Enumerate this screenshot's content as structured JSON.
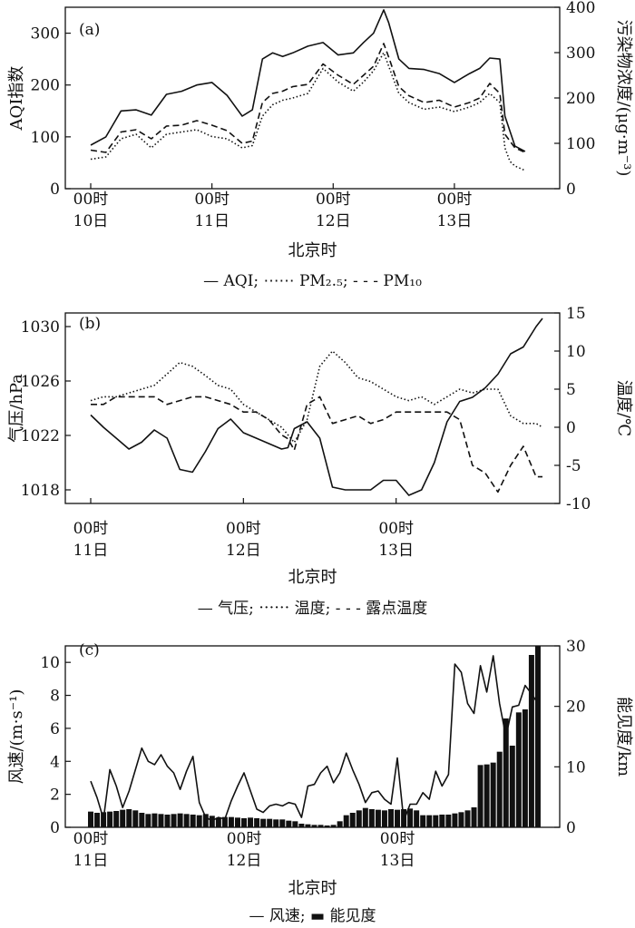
{
  "chart_data": [
    {
      "type": "line",
      "panel_label": "(a)",
      "xlabel": "北京时",
      "ylabel": "AQI指数",
      "ylabel_right": "污染物浓度/(μg·m⁻³)",
      "xlim": [
        0,
        88
      ],
      "ylim": [
        0,
        350
      ],
      "ylim_right": [
        0,
        400
      ],
      "yticks": [
        0,
        100,
        200,
        300
      ],
      "yticks_right": [
        0,
        100,
        200,
        300,
        400
      ],
      "x_ticks": [
        {
          "x": 0,
          "line1": "00时",
          "line2": "10日"
        },
        {
          "x": 24,
          "line1": "00时",
          "line2": "11日"
        },
        {
          "x": 48,
          "line1": "00时",
          "line2": "12日"
        },
        {
          "x": 72,
          "line1": "00时",
          "line2": "13日"
        }
      ],
      "legend": "— AQI;  ⋯⋯ PM₂.₅;  - - - PM₁₀",
      "series": [
        {
          "name": "AQI",
          "axis": "left",
          "style": "solid",
          "x": [
            0,
            3,
            6,
            9,
            12,
            15,
            18,
            21,
            24,
            27,
            30,
            32,
            34,
            36,
            38,
            40,
            43,
            46,
            49,
            52,
            54,
            56,
            58,
            59,
            61,
            63,
            66,
            69,
            72,
            75,
            77,
            79,
            81,
            82,
            84,
            86
          ],
          "y": [
            84,
            100,
            150,
            152,
            142,
            182,
            188,
            200,
            205,
            180,
            140,
            152,
            250,
            262,
            255,
            262,
            275,
            282,
            258,
            262,
            282,
            300,
            345,
            320,
            250,
            232,
            230,
            222,
            205,
            222,
            232,
            252,
            250,
            140,
            82,
            72
          ]
        },
        {
          "name": "PM₂.₅",
          "axis": "right",
          "style": "dotted",
          "x": [
            0,
            3,
            6,
            9,
            12,
            15,
            18,
            21,
            24,
            27,
            30,
            32,
            34,
            36,
            38,
            40,
            43,
            46,
            49,
            52,
            54,
            56,
            58,
            59,
            61,
            63,
            66,
            69,
            72,
            75,
            77,
            79,
            81,
            82,
            83,
            84,
            86
          ],
          "y": [
            65,
            70,
            110,
            120,
            90,
            120,
            125,
            130,
            115,
            110,
            90,
            95,
            160,
            185,
            195,
            200,
            210,
            265,
            235,
            215,
            235,
            260,
            300,
            270,
            210,
            190,
            175,
            180,
            170,
            180,
            190,
            210,
            190,
            90,
            60,
            50,
            40
          ]
        },
        {
          "name": "PM₁₀",
          "axis": "right",
          "style": "dashed",
          "x": [
            0,
            3,
            6,
            9,
            12,
            15,
            18,
            21,
            24,
            27,
            30,
            32,
            34,
            36,
            38,
            40,
            43,
            46,
            49,
            52,
            54,
            56,
            58,
            59,
            61,
            63,
            66,
            69,
            72,
            75,
            77,
            79,
            81,
            82,
            84,
            86
          ],
          "y": [
            85,
            80,
            125,
            130,
            110,
            138,
            140,
            150,
            140,
            128,
            100,
            105,
            190,
            210,
            215,
            225,
            230,
            275,
            250,
            230,
            250,
            270,
            320,
            290,
            225,
            205,
            190,
            195,
            180,
            190,
            200,
            232,
            210,
            120,
            90,
            80
          ]
        }
      ]
    },
    {
      "type": "line",
      "panel_label": "(b)",
      "xlabel": "北京时",
      "ylabel": "气压/hPa",
      "ylabel_right": "温度/℃",
      "xlim": [
        0,
        72
      ],
      "ylim": [
        1017,
        1031
      ],
      "ylim_right": [
        -10,
        15
      ],
      "yticks": [
        1018,
        1022,
        1026,
        1030
      ],
      "yticks_right": [
        -10,
        -5,
        0,
        5,
        10,
        15
      ],
      "x_ticks": [
        {
          "x": 0,
          "line1": "00时",
          "line2": "11日"
        },
        {
          "x": 24,
          "line1": "00时",
          "line2": "12日"
        },
        {
          "x": 48,
          "line1": "00时",
          "line2": "13日"
        }
      ],
      "legend": "— 气压;  ⋯⋯ 温度;  - - - 露点温度",
      "series": [
        {
          "name": "气压",
          "axis": "left",
          "style": "solid",
          "x": [
            0,
            2,
            4,
            6,
            8,
            10,
            12,
            14,
            16,
            18,
            20,
            22,
            24,
            26,
            28,
            30,
            31,
            32,
            34,
            36,
            38,
            40,
            42,
            44,
            46,
            48,
            50,
            52,
            54,
            56,
            58,
            60,
            62,
            64,
            66,
            68,
            70,
            71
          ],
          "y": [
            1023.5,
            1022.6,
            1021.8,
            1021,
            1021.5,
            1022.4,
            1021.8,
            1019.5,
            1019.3,
            1020.8,
            1022.5,
            1023.2,
            1022.2,
            1021.8,
            1021.4,
            1021,
            1021.1,
            1022.5,
            1023,
            1021.8,
            1018.2,
            1018,
            1018,
            1018,
            1018.7,
            1018.7,
            1017.6,
            1018,
            1020,
            1023,
            1024.5,
            1024.8,
            1025.5,
            1026.5,
            1028,
            1028.5,
            1030,
            1030.6
          ]
        },
        {
          "name": "温度",
          "axis": "right",
          "style": "dotted",
          "x": [
            0,
            2,
            4,
            6,
            8,
            10,
            12,
            14,
            16,
            18,
            20,
            22,
            24,
            26,
            28,
            30,
            31,
            32,
            34,
            36,
            38,
            40,
            42,
            44,
            46,
            48,
            50,
            52,
            54,
            56,
            58,
            60,
            62,
            64,
            66,
            68,
            70,
            71
          ],
          "y": [
            3.5,
            4,
            4,
            4.5,
            5,
            5.5,
            7,
            8.5,
            8,
            6.8,
            5.5,
            5,
            3,
            2,
            1,
            0,
            -1,
            -2,
            1,
            8,
            10,
            8.5,
            6.5,
            6,
            5,
            4,
            3.5,
            4,
            3,
            4,
            5,
            4.5,
            5,
            5,
            1.5,
            0.5,
            0.5,
            0
          ]
        },
        {
          "name": "露点温度",
          "axis": "right",
          "style": "dashed",
          "x": [
            0,
            2,
            4,
            6,
            8,
            10,
            12,
            14,
            16,
            18,
            20,
            22,
            24,
            26,
            28,
            30,
            31,
            32,
            34,
            36,
            38,
            40,
            42,
            44,
            46,
            48,
            50,
            52,
            54,
            56,
            58,
            60,
            62,
            64,
            66,
            68,
            70,
            71
          ],
          "y": [
            3,
            3,
            4,
            4,
            4,
            4,
            3,
            3.5,
            4,
            4,
            3.5,
            3,
            2,
            2,
            1,
            -1,
            -1.5,
            -3,
            3,
            4,
            0.5,
            1,
            1.5,
            0.5,
            1,
            2,
            2,
            2,
            2,
            2,
            1,
            -5,
            -6,
            -8.5,
            -5,
            -2.5,
            -6.5,
            -6.5
          ]
        }
      ]
    },
    {
      "type": "bar",
      "panel_label": "(c)",
      "xlabel": "北京时",
      "ylabel": "风速/(m·s⁻¹)",
      "ylabel_right": "能见度/km",
      "xlim": [
        0,
        71
      ],
      "ylim": [
        0,
        11
      ],
      "ylim_right": [
        0,
        30
      ],
      "yticks": [
        0,
        2,
        4,
        6,
        8,
        10
      ],
      "yticks_right": [
        0,
        10,
        20,
        30
      ],
      "x_ticks": [
        {
          "x": 0,
          "line1": "00时",
          "line2": "11日"
        },
        {
          "x": 24,
          "line1": "00时",
          "line2": "12日"
        },
        {
          "x": 48,
          "line1": "00时",
          "line2": "13日"
        }
      ],
      "legend": "— 风速;  ▬ 能见度",
      "series": [
        {
          "name": "风速",
          "axis": "left",
          "kind": "line",
          "x": [
            0,
            1,
            2,
            3,
            4,
            5,
            6,
            7,
            8,
            9,
            10,
            11,
            12,
            13,
            14,
            15,
            16,
            17,
            18,
            19,
            20,
            21,
            22,
            23,
            24,
            25,
            26,
            27,
            28,
            29,
            30,
            31,
            32,
            33,
            34,
            35,
            36,
            37,
            38,
            39,
            40,
            41,
            42,
            43,
            44,
            45,
            46,
            47,
            48,
            49,
            50,
            51,
            52,
            53,
            54,
            55,
            56,
            57,
            58,
            59,
            60,
            61,
            62,
            63,
            64,
            65,
            66,
            67,
            68,
            69,
            70
          ],
          "y": [
            2.8,
            1.8,
            0.5,
            3.5,
            2.5,
            1.2,
            2.2,
            3.5,
            4.8,
            4,
            3.8,
            4.4,
            3.7,
            3.3,
            2.3,
            3.4,
            4.3,
            1.5,
            0.6,
            0.4,
            0.6,
            0.5,
            1.6,
            2.5,
            3.3,
            2.2,
            1.1,
            0.9,
            1.3,
            1.4,
            1.3,
            1.5,
            1.4,
            0.6,
            2.5,
            2.6,
            3.3,
            3.7,
            2.7,
            3.3,
            4.5,
            3.5,
            2.6,
            1.5,
            2.1,
            2.2,
            1.7,
            1.4,
            4.2,
            0.4,
            1.4,
            1.4,
            2.1,
            1.7,
            3.4,
            2.5,
            3.2,
            9.9,
            9.4,
            7.5,
            6.9,
            9.8,
            8.2,
            10.4,
            7.5,
            5.5,
            7.3,
            7.4,
            8.6,
            8.1,
            7.5
          ]
        },
        {
          "name": "能见度",
          "axis": "right",
          "kind": "bar",
          "x": [
            0,
            1,
            2,
            3,
            4,
            5,
            6,
            7,
            8,
            9,
            10,
            11,
            12,
            13,
            14,
            15,
            16,
            17,
            18,
            19,
            20,
            21,
            22,
            23,
            24,
            25,
            26,
            27,
            28,
            29,
            30,
            31,
            32,
            33,
            34,
            35,
            36,
            37,
            38,
            39,
            40,
            41,
            42,
            43,
            44,
            45,
            46,
            47,
            48,
            49,
            50,
            51,
            52,
            53,
            54,
            55,
            56,
            57,
            58,
            59,
            60,
            61,
            62,
            63,
            64,
            65,
            66,
            67,
            68,
            69,
            70
          ],
          "y": [
            2.6,
            2.4,
            2.5,
            2.6,
            2.7,
            2.9,
            3,
            2.8,
            2.4,
            2.2,
            2.3,
            2.2,
            2.1,
            2.2,
            2.3,
            2.2,
            2.1,
            2,
            2.2,
            1.9,
            1.6,
            1.7,
            1.7,
            1.6,
            1.5,
            1.6,
            1.5,
            1.4,
            1.4,
            1.3,
            1.3,
            1.1,
            1,
            0.6,
            0.5,
            0.4,
            0.4,
            0.3,
            0.4,
            1,
            2,
            2.4,
            2.8,
            3.2,
            3,
            2.9,
            2.8,
            3,
            2.9,
            3,
            3.1,
            2.8,
            2,
            2,
            2,
            2.1,
            2.1,
            2.3,
            2.5,
            2.8,
            3.3,
            10.3,
            10.4,
            10.7,
            12.5,
            18,
            13.5,
            19,
            19.5,
            28.5,
            30
          ]
        }
      ]
    }
  ]
}
